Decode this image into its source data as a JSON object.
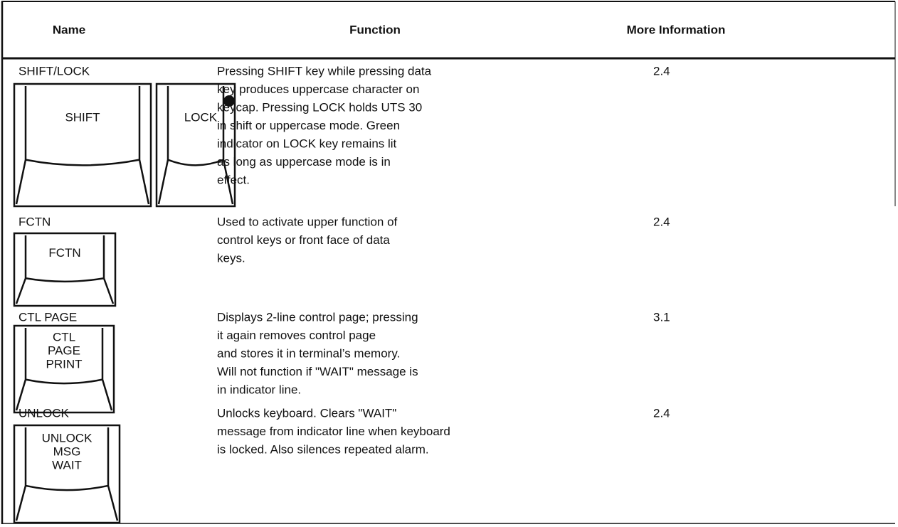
{
  "table": {
    "headers": [
      "Name",
      "Function",
      "More Information"
    ],
    "rows": [
      {
        "name": "SHIFT/LOCK",
        "keys": [
          [
            "SHIFT"
          ],
          [
            "LOCK"
          ]
        ],
        "function": [
          "Pressing SHIFT key while pressing data",
          "key produces uppercase character on",
          "keycap. Pressing LOCK holds UTS 30",
          "in shift or uppercase mode. Green",
          "indicator on LOCK key remains lit",
          "as long as uppercase mode is in",
          "effect."
        ],
        "info": "2.4"
      },
      {
        "name": "FCTN",
        "keys": [
          [
            "FCTN"
          ]
        ],
        "function": [
          "Used to activate upper function of",
          "control keys or front face of data",
          "keys."
        ],
        "info": "2.4"
      },
      {
        "name": "CTL PAGE",
        "keys": [
          [
            "CTL",
            "PAGE",
            "PRINT"
          ]
        ],
        "function": [
          "Displays 2-line control page; pressing",
          "it again removes control page",
          "and stores it in terminal’s memory.",
          "Will not function if \"WAIT\" message is",
          "in indicator line."
        ],
        "info": "3.1"
      },
      {
        "name": "UNLOCK",
        "keys": [
          [
            "UNLOCK",
            "MSG",
            "WAIT"
          ]
        ],
        "function": [
          "Unlocks keyboard. Clears \"WAIT\"",
          "message from indicator line when keyboard",
          "is locked. Also silences repeated alarm."
        ],
        "info": "2.4"
      }
    ]
  }
}
